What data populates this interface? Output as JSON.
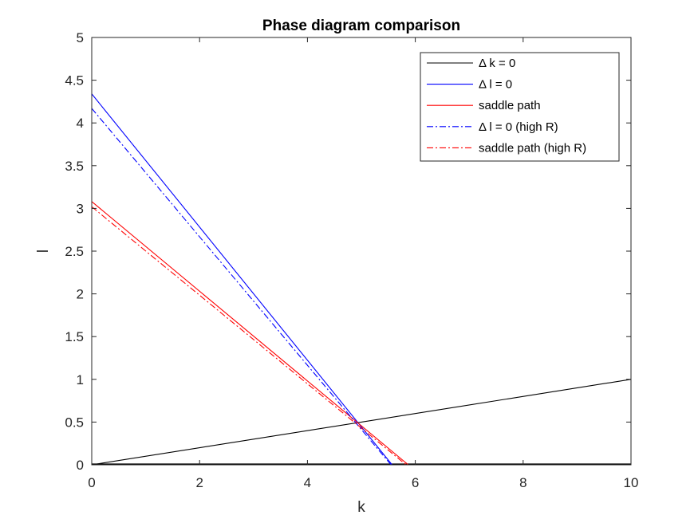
{
  "chart_data": {
    "type": "line",
    "title": "Phase diagram comparison",
    "xlabel": "k",
    "ylabel": "l",
    "xlim": [
      0,
      10
    ],
    "ylim": [
      0,
      5
    ],
    "xticks": [
      0,
      2,
      4,
      6,
      8,
      10
    ],
    "yticks": [
      0,
      0.5,
      1,
      1.5,
      2,
      2.5,
      3,
      3.5,
      4,
      4.5,
      5
    ],
    "xtick_labels": [
      "0",
      "2",
      "4",
      "6",
      "8",
      "10"
    ],
    "ytick_labels": [
      "0",
      "0.5",
      "1",
      "1.5",
      "2",
      "2.5",
      "3",
      "3.5",
      "4",
      "4.5",
      "5"
    ],
    "grid": false,
    "legend_position": "top-right",
    "series": [
      {
        "name": "Δ k = 0",
        "color": "#000000",
        "style": "solid",
        "x": [
          0,
          10
        ],
        "y": [
          0,
          1
        ]
      },
      {
        "name": "Δ l = 0",
        "color": "#0000ff",
        "style": "solid",
        "x": [
          0,
          5.57
        ],
        "y": [
          4.34,
          0
        ]
      },
      {
        "name": "saddle path",
        "color": "#ff0000",
        "style": "solid",
        "x": [
          0,
          5.87
        ],
        "y": [
          3.08,
          0
        ]
      },
      {
        "name": "Δ l = 0 (high R)",
        "color": "#0000ff",
        "style": "dashdot",
        "x": [
          0,
          5.55
        ],
        "y": [
          4.17,
          0
        ]
      },
      {
        "name": "saddle path (high R)",
        "color": "#ff0000",
        "style": "dashdot",
        "x": [
          0,
          5.83
        ],
        "y": [
          3.02,
          0
        ]
      }
    ],
    "baseline": {
      "color": "#000000",
      "style": "solid",
      "x": [
        0,
        10
      ],
      "y": [
        0.01,
        0.01
      ]
    }
  }
}
